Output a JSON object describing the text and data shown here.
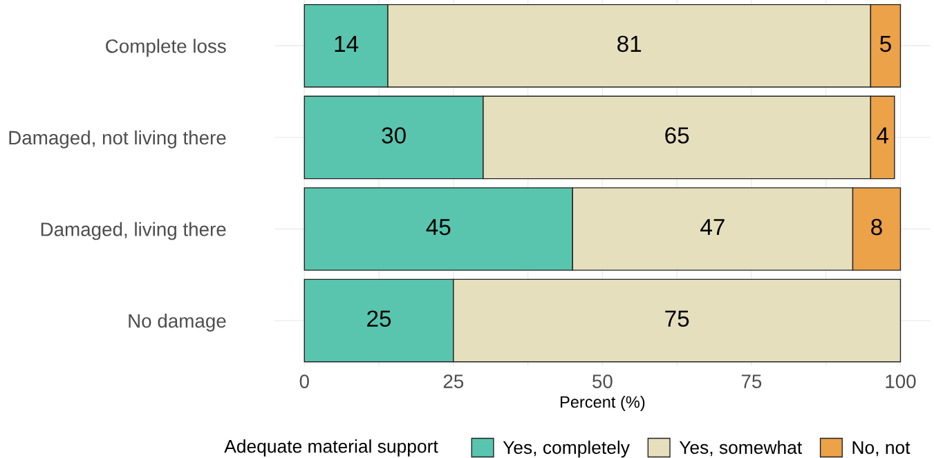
{
  "chart_data": {
    "type": "bar",
    "orientation": "horizontal",
    "stacked": true,
    "categories": [
      "Complete loss",
      "Damaged, not living there",
      "Damaged, living there",
      "No damage"
    ],
    "series": [
      {
        "name": "Yes, completely",
        "color": "#59c5ae",
        "values": [
          14,
          30,
          45,
          25
        ]
      },
      {
        "name": "Yes, somewhat",
        "color": "#e5dfbd",
        "values": [
          81,
          65,
          47,
          75
        ]
      },
      {
        "name": "No, not",
        "color": "#eca249",
        "values": [
          5,
          4,
          8,
          null
        ]
      }
    ],
    "xlabel": "Percent (%)",
    "legend_title": "Adequate material support",
    "legend": "bottom",
    "xlim": [
      -5,
      105
    ],
    "xticks": [
      0,
      {
        "value": 12.5,
        "label": null
      },
      25,
      {
        "value": 37.5,
        "label": null
      },
      50,
      {
        "value": 62.5,
        "label": null
      },
      75,
      {
        "value": 87.5,
        "label": null
      },
      100
    ],
    "grid": true,
    "data_labels": true
  }
}
